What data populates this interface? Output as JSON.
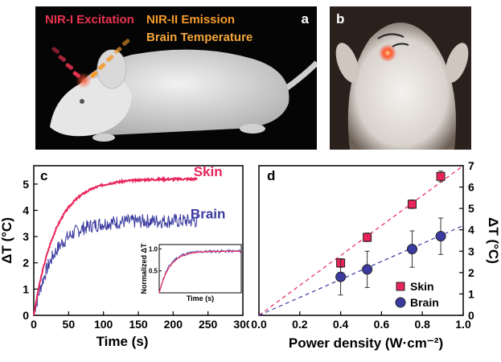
{
  "panel_a": {
    "letter": "a",
    "labels": {
      "excitation": "NIR-I Excitation",
      "emission": "NIR-II Emission",
      "temperature": "Brain Temperature"
    },
    "colors": {
      "excitation": "#e8334f",
      "emission": "#f39a2c",
      "temperature": "#f4a63a"
    }
  },
  "panel_b": {
    "letter": "b"
  },
  "chart_data": [
    {
      "panel": "c",
      "type": "line",
      "xlabel": "Time (s)",
      "ylabel": "ΔT (°C)",
      "xlim": [
        0,
        300
      ],
      "ylim": [
        0,
        5.7
      ],
      "xticks": [
        "0",
        "50",
        "100",
        "150",
        "200",
        "250",
        "300"
      ],
      "yticks": [
        "0",
        "1",
        "2",
        "3",
        "4",
        "5"
      ],
      "series": [
        {
          "name": "Skin",
          "color": "#e8245a",
          "plateau": 5.2,
          "end_time": 235
        },
        {
          "name": "Brain",
          "color": "#3a3aa0",
          "plateau": 3.6,
          "end_time": 235
        }
      ],
      "inset": {
        "xlabel": "Time (s)",
        "ylabel": "Normalized ΔT",
        "yticks": [
          "0.5",
          "1.0"
        ],
        "ylim": [
          0,
          1.1
        ]
      }
    },
    {
      "panel": "d",
      "type": "scatter",
      "xlabel": "Power density (W·cm⁻²)",
      "ylabel": "ΔT (°C)",
      "xlim": [
        0,
        1.0
      ],
      "ylim": [
        0,
        7
      ],
      "xticks": [
        "0.0",
        "0.2",
        "0.4",
        "0.6",
        "0.8",
        "1.0"
      ],
      "yticks": [
        "0",
        "1",
        "2",
        "3",
        "4",
        "5",
        "6",
        "7"
      ],
      "series": [
        {
          "name": "Skin",
          "color": "#e8245a",
          "marker": "square",
          "points": [
            [
              0.4,
              2.45,
              0.2
            ],
            [
              0.53,
              3.65,
              0.2
            ],
            [
              0.75,
              5.2,
              0.2
            ],
            [
              0.89,
              6.5,
              0.25
            ]
          ],
          "fit_slope": 7.2
        },
        {
          "name": "Brain",
          "color": "#3a3aa0",
          "marker": "circle",
          "points": [
            [
              0.4,
              1.8,
              0.85
            ],
            [
              0.53,
              2.15,
              0.85
            ],
            [
              0.75,
              3.1,
              0.85
            ],
            [
              0.89,
              3.7,
              0.85
            ]
          ],
          "fit_slope": 4.2
        }
      ]
    }
  ]
}
